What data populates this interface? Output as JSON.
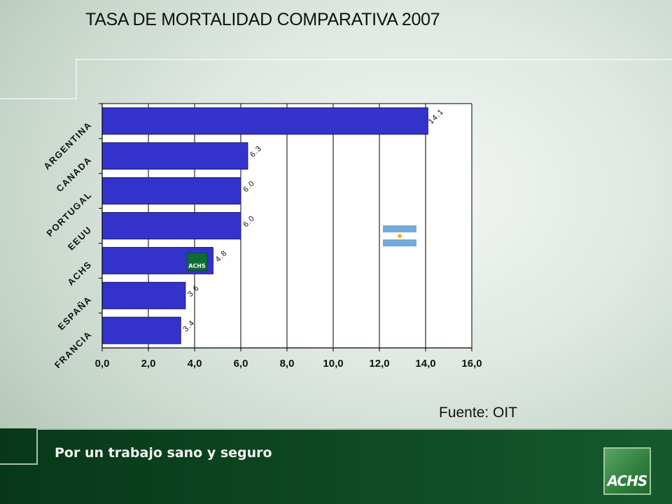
{
  "slide": {
    "title": "TASA DE MORTALIDAD COMPARATIVA 2007",
    "source": "Fuente: OIT",
    "tagline": "Por un trabajo sano y seguro",
    "logo_text": "ACHS"
  },
  "badge_text": "ACHS",
  "colors": {
    "bar": "#3333cc",
    "footer": "#0e4a23",
    "badge": "#0f6b35"
  },
  "chart_data": {
    "type": "bar",
    "orientation": "horizontal",
    "title": "TASA DE MORTALIDAD COMPARATIVA 2007",
    "categories": [
      "ARGENTINA",
      "CANADA",
      "PORTUGAL",
      "EEUU",
      "ACHS",
      "ESPAÑA",
      "FRANCIA"
    ],
    "values": [
      14.1,
      6.3,
      6.0,
      6.0,
      4.8,
      3.6,
      3.4
    ],
    "value_labels": [
      "14.1",
      "6.3",
      "6.0",
      "6.0",
      "4.8",
      "3.6",
      "3.4"
    ],
    "xlim": [
      0,
      16
    ],
    "xticks": [
      "0,0",
      "2,0",
      "4,0",
      "6,0",
      "8,0",
      "10,0",
      "12,0",
      "14,0",
      "16,0"
    ],
    "grid": "vertical",
    "legend": "none"
  }
}
